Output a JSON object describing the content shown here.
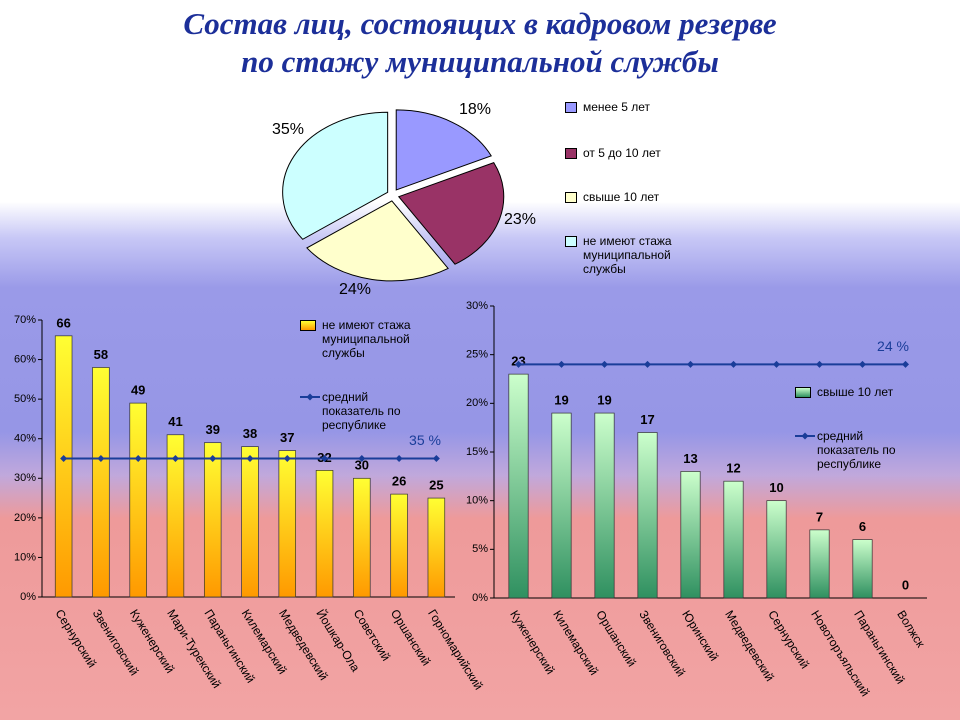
{
  "title": [
    "Состав лиц, состоящих в кадровом резерве",
    "по стажу муниципальной службы"
  ],
  "chart_data": [
    {
      "type": "pie",
      "categories": [
        "менее 5 лет",
        "от 5 до 10 лет",
        "свыше 10 лет",
        "не имеют стажа муниципальной службы"
      ],
      "values": [
        18,
        23,
        24,
        35
      ],
      "value_labels": [
        "18%",
        "23%",
        "24%",
        "35%"
      ],
      "colors": [
        "#9999ff",
        "#993366",
        "#ffffcc",
        "#ccffff"
      ]
    },
    {
      "type": "bar",
      "categories": [
        "Сернурский",
        "Звениговский",
        "Куженерский",
        "Мари-Турекский",
        "Параньгинский",
        "Килемарский",
        "Медведевский",
        "Йошкар-Ола",
        "Советский",
        "Оршанский",
        "Горномарийский"
      ],
      "series": [
        {
          "name": "не имеют стажа муниципальной службы",
          "color": [
            "#ffff33",
            "#ff9900"
          ],
          "values": [
            66,
            58,
            49,
            41,
            39,
            38,
            37,
            32,
            30,
            26,
            25
          ]
        }
      ],
      "average": {
        "name": "средний показатель по республике",
        "color": "#1a3d99",
        "value": 35,
        "label": "35 %"
      },
      "ylim": [
        0,
        70
      ],
      "yticks": [
        {
          "value": 0,
          "label": "0%"
        },
        {
          "value": 10,
          "label": "10%"
        },
        {
          "value": 20,
          "label": "20%"
        },
        {
          "value": 30,
          "label": "30%"
        },
        {
          "value": 40,
          "label": "40%"
        },
        {
          "value": 50,
          "label": "50%"
        },
        {
          "value": 60,
          "label": "60%"
        },
        {
          "value": 70,
          "label": "70%"
        }
      ]
    },
    {
      "type": "bar",
      "categories": [
        "Куженерский",
        "Килемарский",
        "Оршанский",
        "Звениговский",
        "Юринский",
        "Медведевский",
        "Сернурский",
        "Новоторъяльский",
        "Параньгинский",
        "Волжск"
      ],
      "series": [
        {
          "name": "свыше 10 лет",
          "color": [
            "#ccffcc",
            "#2f9060"
          ],
          "values": [
            23,
            19,
            19,
            17,
            13,
            12,
            10,
            7,
            6,
            0
          ]
        }
      ],
      "average": {
        "name": "средний показатель по республике",
        "color": "#1a3d99",
        "value": 24,
        "label": "24 %"
      },
      "ylim": [
        0,
        30
      ],
      "yticks": [
        {
          "value": 0,
          "label": "0%"
        },
        {
          "value": 5,
          "label": "5%"
        },
        {
          "value": 10,
          "label": "10%"
        },
        {
          "value": 15,
          "label": "15%"
        },
        {
          "value": 20,
          "label": "20%"
        },
        {
          "value": 25,
          "label": "25%"
        },
        {
          "value": 30,
          "label": "30%"
        }
      ]
    }
  ]
}
